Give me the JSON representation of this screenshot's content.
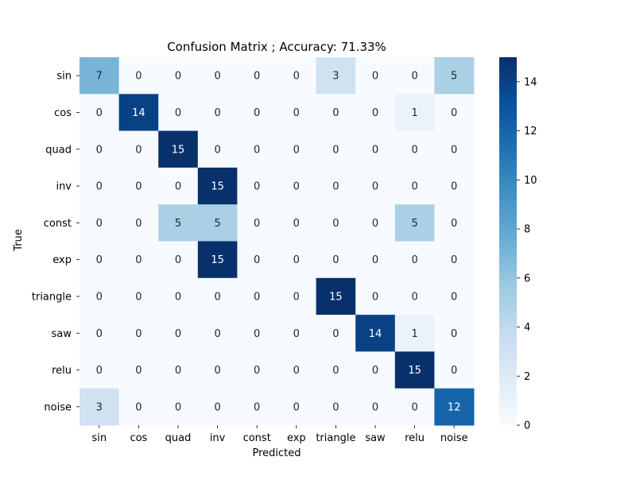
{
  "chart_data": {
    "type": "heatmap",
    "title": "Confusion Matrix ; Accuracy: 71.33%",
    "xlabel": "Predicted",
    "ylabel": "True",
    "x_categories": [
      "sin",
      "cos",
      "quad",
      "inv",
      "const",
      "exp",
      "triangle",
      "saw",
      "relu",
      "noise"
    ],
    "y_categories": [
      "sin",
      "cos",
      "quad",
      "inv",
      "const",
      "exp",
      "triangle",
      "saw",
      "relu",
      "noise"
    ],
    "values": [
      [
        7,
        0,
        0,
        0,
        0,
        0,
        3,
        0,
        0,
        5
      ],
      [
        0,
        14,
        0,
        0,
        0,
        0,
        0,
        0,
        1,
        0
      ],
      [
        0,
        0,
        15,
        0,
        0,
        0,
        0,
        0,
        0,
        0
      ],
      [
        0,
        0,
        0,
        15,
        0,
        0,
        0,
        0,
        0,
        0
      ],
      [
        0,
        0,
        5,
        5,
        0,
        0,
        0,
        0,
        5,
        0
      ],
      [
        0,
        0,
        0,
        15,
        0,
        0,
        0,
        0,
        0,
        0
      ],
      [
        0,
        0,
        0,
        0,
        0,
        0,
        15,
        0,
        0,
        0
      ],
      [
        0,
        0,
        0,
        0,
        0,
        0,
        0,
        14,
        1,
        0
      ],
      [
        0,
        0,
        0,
        0,
        0,
        0,
        0,
        0,
        15,
        0
      ],
      [
        3,
        0,
        0,
        0,
        0,
        0,
        0,
        0,
        0,
        12
      ]
    ],
    "colorbar": {
      "range": [
        0,
        15
      ],
      "ticks": [
        0,
        2,
        4,
        6,
        8,
        10,
        12,
        14
      ]
    },
    "colormap": "Blues",
    "colormap_stops": [
      "#f7fbff",
      "#deebf7",
      "#c6dbef",
      "#9ecae1",
      "#6baed6",
      "#4292c6",
      "#2171b5",
      "#08519c",
      "#08306b"
    ]
  }
}
